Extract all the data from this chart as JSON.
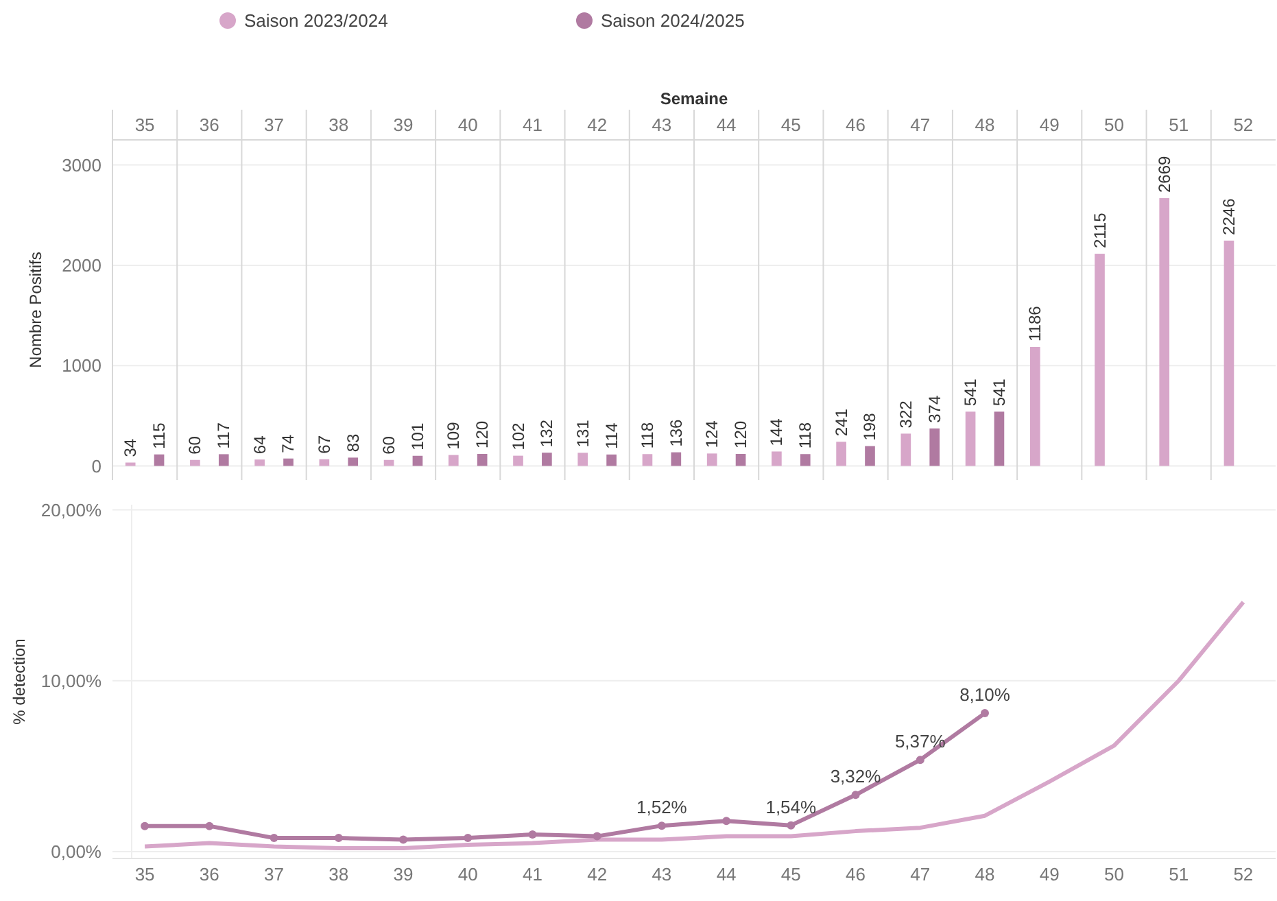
{
  "chart_data": [
    {
      "type": "bar",
      "xlabel": "Semaine",
      "ylabel": "Nombre Positifs",
      "categories": [
        "35",
        "36",
        "37",
        "38",
        "39",
        "40",
        "41",
        "42",
        "43",
        "44",
        "45",
        "46",
        "47",
        "48",
        "49",
        "50",
        "51",
        "52"
      ],
      "series": [
        {
          "name": "Saison 2023/2024",
          "color": "#d7a6c9",
          "values": [
            34,
            60,
            64,
            67,
            60,
            109,
            102,
            131,
            118,
            124,
            144,
            241,
            322,
            541,
            1186,
            2115,
            2669,
            2246
          ]
        },
        {
          "name": "Saison 2024/2025",
          "color": "#b07aa1",
          "values": [
            115,
            117,
            74,
            83,
            101,
            120,
            132,
            114,
            136,
            120,
            118,
            198,
            374,
            541,
            null,
            null,
            null,
            null
          ]
        }
      ],
      "ylim": [
        -140,
        3250
      ],
      "yticks": [
        0,
        1000,
        2000,
        3000
      ],
      "grid": true,
      "data_labels": true,
      "legend": "top left"
    },
    {
      "type": "line",
      "ylabel": "% detection",
      "categories": [
        "35",
        "36",
        "37",
        "38",
        "39",
        "40",
        "41",
        "42",
        "43",
        "44",
        "45",
        "46",
        "47",
        "48",
        "49",
        "50",
        "51",
        "52"
      ],
      "series": [
        {
          "color": "#d7a6c9",
          "values": [
            0.3,
            0.5,
            0.3,
            0.2,
            0.2,
            0.4,
            0.5,
            0.7,
            0.7,
            0.9,
            0.9,
            1.2,
            1.4,
            2.1,
            4.1,
            6.2,
            10.0,
            14.6
          ]
        },
        {
          "color": "#b07aa1",
          "marker": "circle",
          "values": [
            1.5,
            1.5,
            0.8,
            0.8,
            0.7,
            0.8,
            1.0,
            0.9,
            1.52,
            1.8,
            1.54,
            3.32,
            5.37,
            8.1,
            null,
            null,
            null,
            null
          ],
          "value_labels": [
            null,
            null,
            null,
            null,
            null,
            null,
            null,
            null,
            "1,52%",
            null,
            "1,54%",
            "3,32%",
            "5,37%",
            "8,10%",
            null,
            null,
            null,
            null
          ]
        }
      ],
      "ylim": [
        -0.4,
        20.3
      ],
      "yticks": [
        {
          "value": 0,
          "label": "0,00%"
        },
        {
          "value": 10,
          "label": "10,00%"
        },
        {
          "value": 20,
          "label": "20,00%"
        }
      ],
      "grid": "y"
    }
  ]
}
